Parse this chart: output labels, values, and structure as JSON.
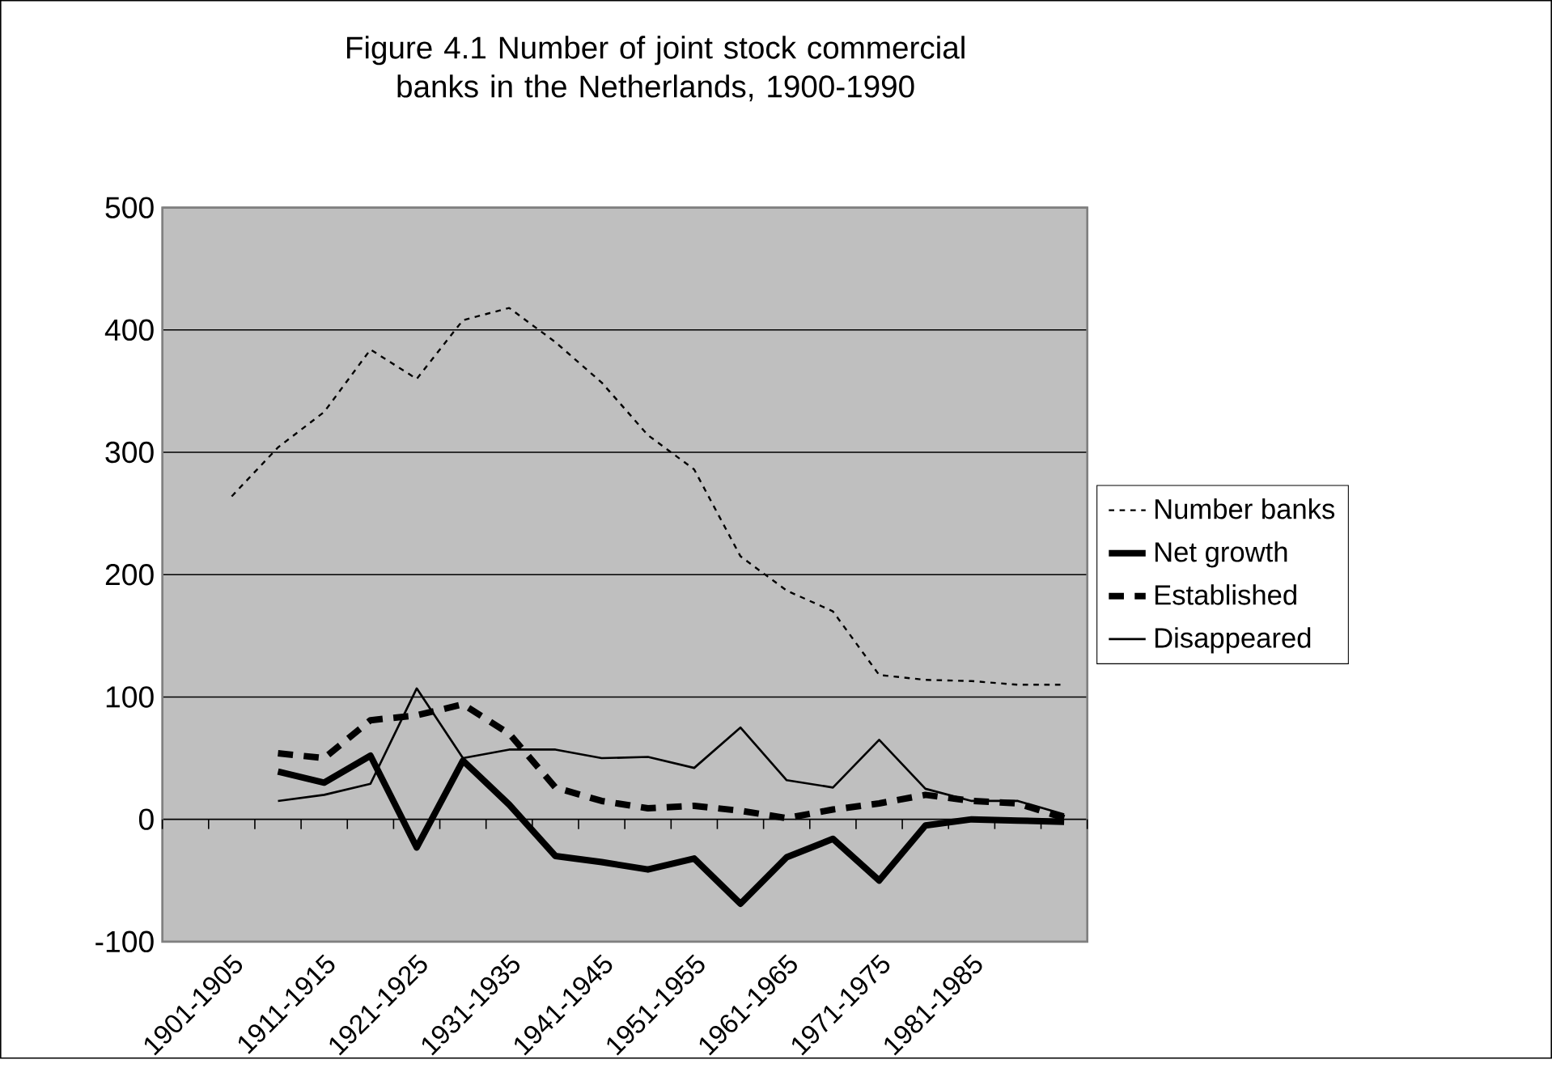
{
  "chart_data": {
    "type": "line",
    "title": "Figure 4.1 Number of joint stock commercial banks in the Netherlands, 1900-1990",
    "categories": [
      null,
      "1901-1905",
      null,
      "1911-1915",
      null,
      "1921-1925",
      null,
      "1931-1935",
      null,
      "1941-1945",
      null,
      "1951-1955",
      null,
      "1961-1965",
      null,
      "1971-1975",
      null,
      "1981-1985",
      null,
      null
    ],
    "series": [
      {
        "name": "Number banks",
        "color": "#000000",
        "line_style": "dotted",
        "values": [
          null,
          264,
          304,
          333,
          384,
          360,
          408,
          418,
          390,
          357,
          314,
          286,
          215,
          187,
          170,
          118,
          114,
          113,
          110,
          110
        ]
      },
      {
        "name": "Net growth",
        "color": "#000000",
        "line_style": "solid",
        "values": [
          null,
          null,
          39,
          30,
          52,
          -23,
          48,
          12,
          -30,
          -35,
          -41,
          -32,
          -69,
          -31,
          -16,
          -50,
          -5,
          0,
          -1,
          -2
        ]
      },
      {
        "name": "Established",
        "color": "#000000",
        "line_style": "dashed",
        "values": [
          null,
          null,
          54,
          50,
          81,
          85,
          94,
          70,
          26,
          15,
          9,
          11,
          7,
          1,
          8,
          13,
          20,
          15,
          13,
          1
        ]
      },
      {
        "name": "Disappeared",
        "color": "#000000",
        "line_style": "solid",
        "values": [
          null,
          null,
          15,
          20,
          29,
          107,
          50,
          57,
          57,
          50,
          51,
          42,
          75,
          32,
          26,
          65,
          25,
          15,
          15,
          4
        ]
      }
    ],
    "ylim": [
      -100,
      500
    ],
    "yticks": [
      -100,
      0,
      100,
      200,
      300,
      400,
      500
    ],
    "grid": "y",
    "legend": "right",
    "marker": "none"
  }
}
